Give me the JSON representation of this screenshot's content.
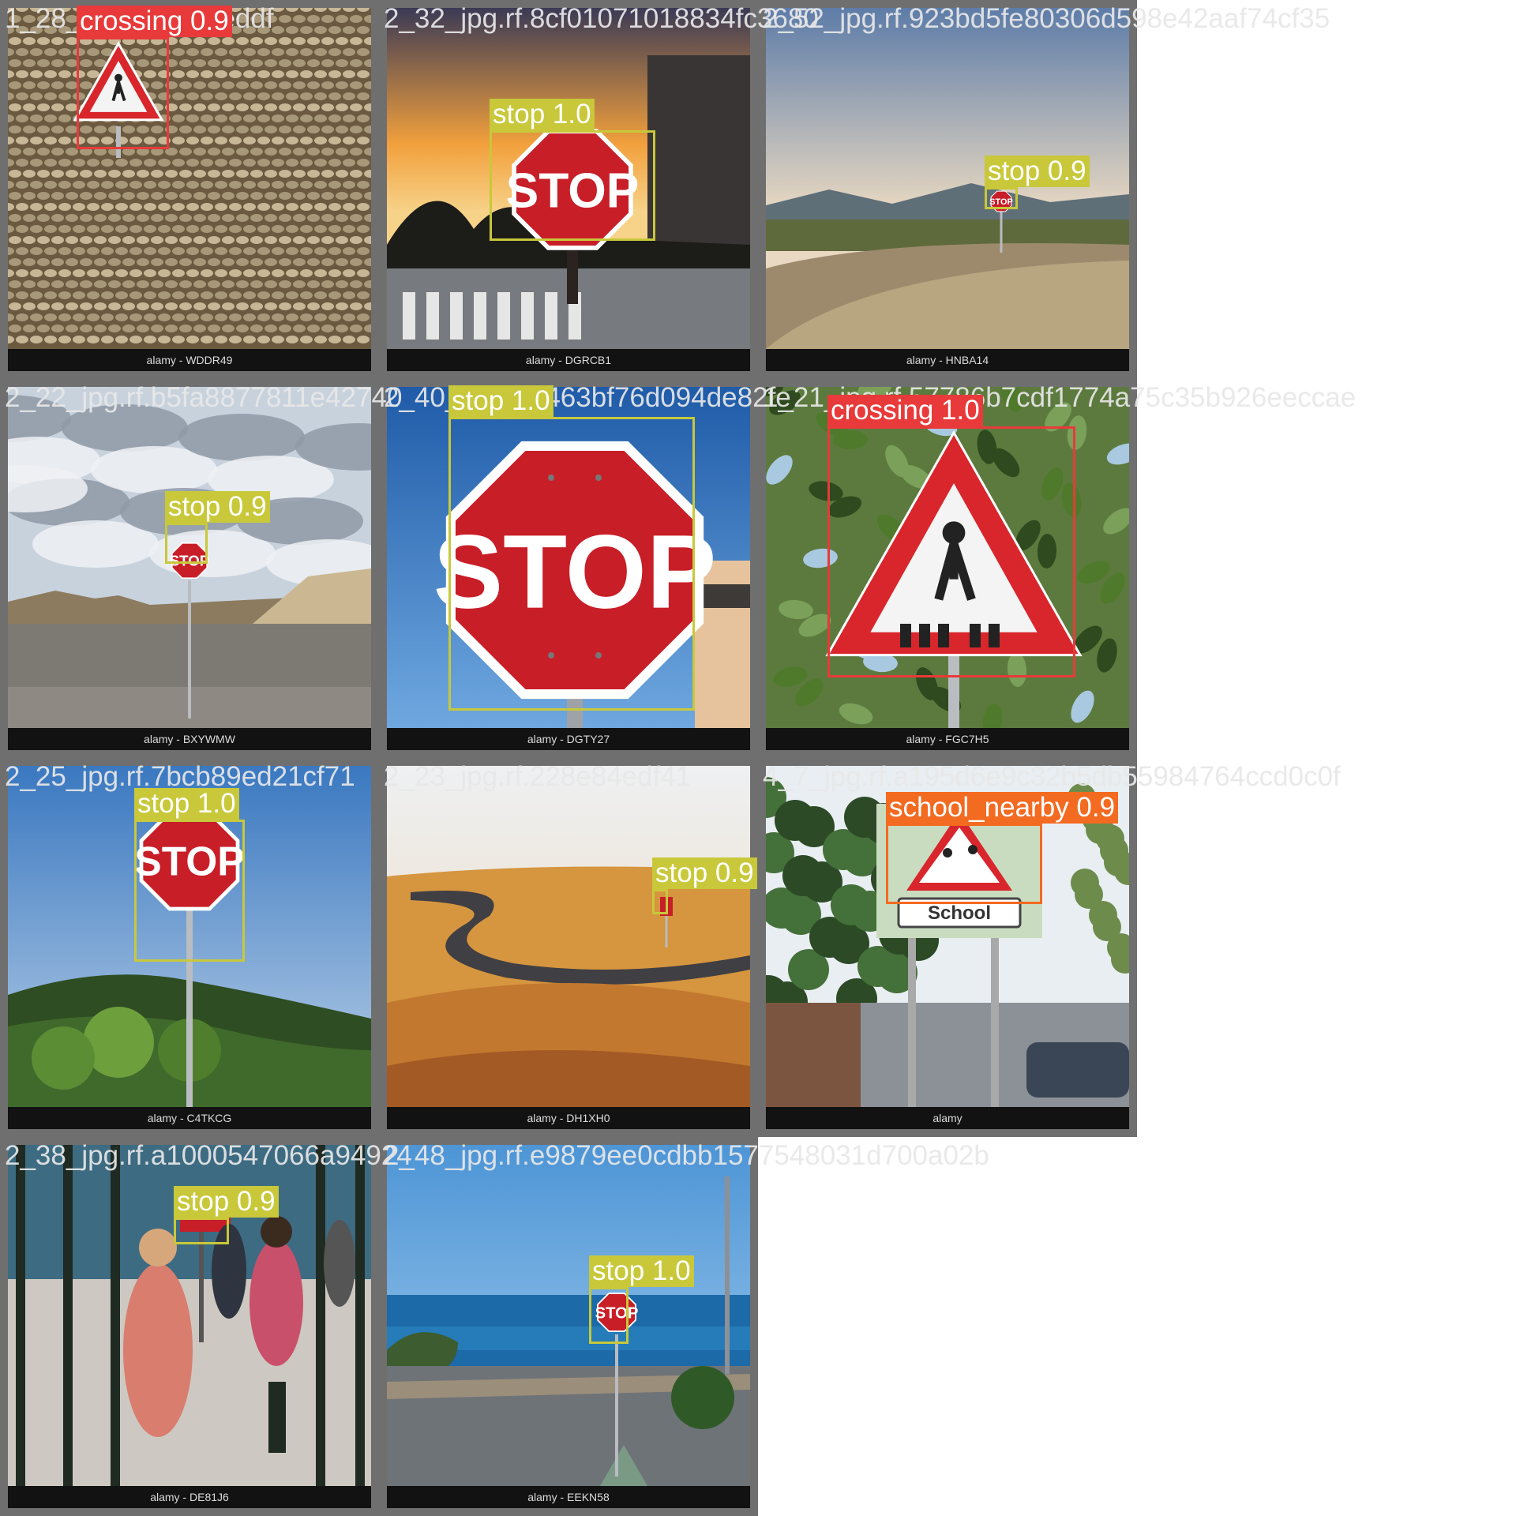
{
  "colors": {
    "stop": "#c8c83a",
    "crossing": "#e83a3a",
    "school_nearby": "#f36a21"
  },
  "tiles": [
    {
      "filename": "1_28_jpg.rf.f3f7bfeddf",
      "watermark": "alamy - WDDR49",
      "scene": "stone-wall",
      "detections": [
        {
          "cls": "crossing",
          "label": "crossing 0.9"
        }
      ]
    },
    {
      "filename": "2_32_jpg.rf.8cf01071018834fc3680",
      "watermark": "alamy - DGRCB1",
      "scene": "sunset-stop",
      "detections": [
        {
          "cls": "stop",
          "label": "stop 1.0"
        }
      ]
    },
    {
      "filename": "2_52_jpg.rf.923bd5fe80306d598e42aaf74cf35",
      "watermark": "alamy - HNBA14",
      "scene": "desert-road",
      "detections": [
        {
          "cls": "stop",
          "label": "stop 0.9"
        }
      ]
    },
    {
      "filename": "2_22_jpg.rf.b5fa8877811e42740",
      "watermark": "alamy - BXYWMW",
      "scene": "cloudy-plain",
      "detections": [
        {
          "cls": "stop",
          "label": "stop 0.9"
        }
      ]
    },
    {
      "filename": "2_40_jpg.rf.b463bf76d094de82fe",
      "watermark": "alamy - DGTY27",
      "scene": "blue-sky-stop",
      "detections": [
        {
          "cls": "stop",
          "label": "stop 1.0"
        }
      ]
    },
    {
      "filename": "1_21_jpg.rf.57786b7cdf1774a75c35b926eeccae",
      "watermark": "alamy - FGC7H5",
      "scene": "tree-crossing",
      "detections": [
        {
          "cls": "crossing",
          "label": "crossing 1.0"
        }
      ]
    },
    {
      "filename": "2_25_jpg.rf.7bcb89ed21cf71",
      "watermark": "alamy - C4TKCG",
      "scene": "forest-stop",
      "detections": [
        {
          "cls": "stop",
          "label": "stop 1.0"
        }
      ]
    },
    {
      "filename": "2_23_jpg.rf.228e84edf41",
      "watermark": "alamy - DH1XH0",
      "scene": "orange-field",
      "detections": [
        {
          "cls": "stop",
          "label": "stop 0.9"
        }
      ]
    },
    {
      "filename": "4_7_jpg.rf.a195d6e9c32b5db55984764ccd0c0f",
      "watermark": "alamy",
      "scene": "school-street",
      "detections": [
        {
          "cls": "school_nearby",
          "label": "school_nearby 0.9"
        }
      ]
    },
    {
      "filename": "2_38_jpg.rf.a1000547066a94924",
      "watermark": "alamy - DE81J6",
      "scene": "pedestrians",
      "detections": [
        {
          "cls": "stop",
          "label": "stop 0.9"
        }
      ]
    },
    {
      "filename": "2_48_jpg.rf.e9879ee0cdbb1577548031d700a02b",
      "watermark": "alamy - EEKN58",
      "scene": "sea-stop",
      "detections": [
        {
          "cls": "stop",
          "label": "stop 1.0"
        }
      ]
    }
  ]
}
